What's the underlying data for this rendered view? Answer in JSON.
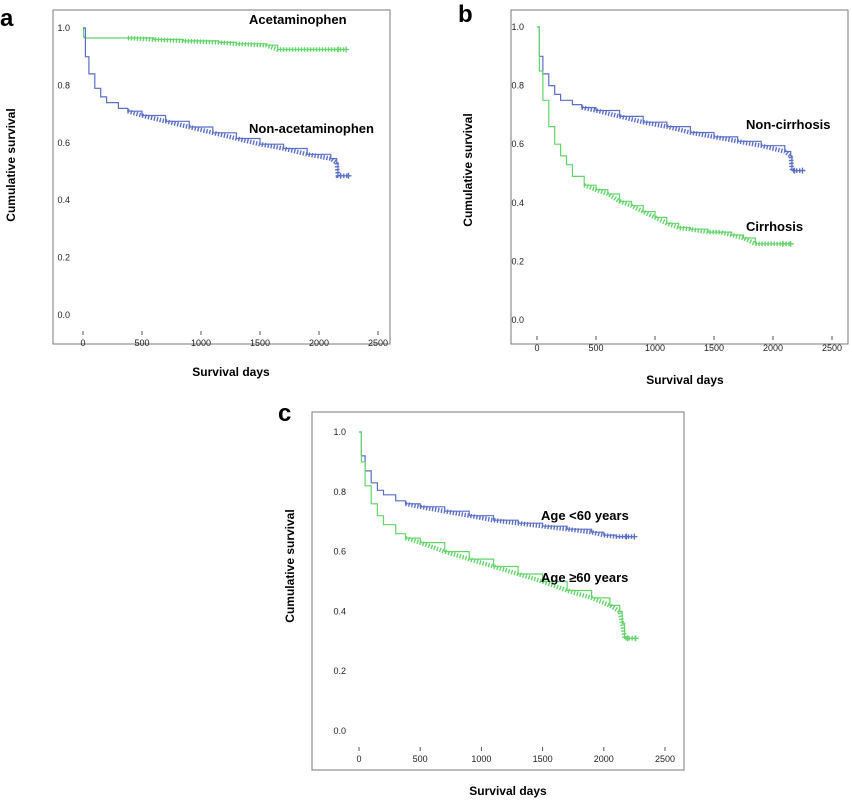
{
  "chart_data": [
    {
      "panel": "a",
      "type": "line",
      "xlabel": "Survival days",
      "ylabel": "Cumulative survival",
      "xlim": [
        0,
        2500
      ],
      "ylim": [
        0,
        1
      ],
      "xticks": [
        "0",
        "500",
        "1000",
        "1500",
        "2000",
        "2500"
      ],
      "yticks": [
        "0.0",
        "0.2",
        "0.4",
        "0.6",
        "0.8",
        "1.0"
      ],
      "series": [
        {
          "name": "Acetaminophen",
          "color": "#63d46b",
          "x": [
            0,
            5,
            10,
            380,
            600,
            850,
            1150,
            1300,
            1550,
            1650,
            1800,
            2000,
            2230
          ],
          "y": [
            1.0,
            0.97,
            0.965,
            0.965,
            0.96,
            0.955,
            0.95,
            0.945,
            0.94,
            0.925,
            0.925,
            0.925,
            0.925
          ]
        },
        {
          "name": "Non-acetaminophen",
          "color": "#5b6fc6",
          "x": [
            0,
            20,
            50,
            100,
            150,
            200,
            300,
            380,
            500,
            700,
            900,
            1100,
            1300,
            1500,
            1700,
            1900,
            2100,
            2150,
            2160,
            2250
          ],
          "y": [
            1.0,
            0.9,
            0.84,
            0.79,
            0.76,
            0.74,
            0.72,
            0.71,
            0.695,
            0.675,
            0.655,
            0.635,
            0.615,
            0.595,
            0.58,
            0.56,
            0.545,
            0.53,
            0.485,
            0.485
          ]
        }
      ]
    },
    {
      "panel": "b",
      "type": "line",
      "xlabel": "Survival days",
      "ylabel": "Cumulative survival",
      "xlim": [
        0,
        2500
      ],
      "ylim": [
        0,
        1
      ],
      "xticks": [
        "0",
        "500",
        "1000",
        "1500",
        "2000",
        "2500"
      ],
      "yticks": [
        "0.0",
        "0.2",
        "0.4",
        "0.6",
        "0.8",
        "1.0"
      ],
      "series": [
        {
          "name": "Non-cirrhosis",
          "color": "#5b6fc6",
          "x": [
            0,
            20,
            50,
            100,
            150,
            200,
            300,
            380,
            500,
            700,
            900,
            1100,
            1300,
            1500,
            1700,
            1900,
            2100,
            2150,
            2160,
            2250
          ],
          "y": [
            1.0,
            0.9,
            0.84,
            0.8,
            0.77,
            0.75,
            0.735,
            0.725,
            0.715,
            0.695,
            0.675,
            0.66,
            0.64,
            0.625,
            0.61,
            0.595,
            0.575,
            0.56,
            0.51,
            0.51
          ]
        },
        {
          "name": "Cirrhosis",
          "color": "#63d46b",
          "x": [
            0,
            20,
            50,
            100,
            150,
            200,
            250,
            300,
            400,
            500,
            600,
            700,
            800,
            900,
            1000,
            1100,
            1200,
            1300,
            1450,
            1550,
            1650,
            1750,
            1850,
            2000,
            2150
          ],
          "y": [
            1.0,
            0.85,
            0.75,
            0.66,
            0.6,
            0.56,
            0.53,
            0.49,
            0.46,
            0.445,
            0.43,
            0.405,
            0.39,
            0.37,
            0.35,
            0.33,
            0.315,
            0.31,
            0.3,
            0.3,
            0.29,
            0.28,
            0.26,
            0.26,
            0.26
          ]
        }
      ]
    },
    {
      "panel": "c",
      "type": "line",
      "xlabel": "Survival days",
      "ylabel": "Cumulative survival",
      "xlim": [
        0,
        2500
      ],
      "ylim": [
        0,
        1
      ],
      "xticks": [
        "0",
        "500",
        "1000",
        "1500",
        "2000",
        "2500"
      ],
      "yticks": [
        "0.0",
        "0.2",
        "0.4",
        "0.6",
        "0.8",
        "1.0"
      ],
      "series": [
        {
          "name": "Age <60 years",
          "color": "#5b6fc6",
          "x": [
            0,
            20,
            50,
            100,
            150,
            200,
            300,
            380,
            500,
            700,
            900,
            1100,
            1300,
            1500,
            1700,
            1900,
            2000,
            2100,
            2250
          ],
          "y": [
            1.0,
            0.92,
            0.87,
            0.83,
            0.805,
            0.79,
            0.77,
            0.76,
            0.75,
            0.735,
            0.72,
            0.705,
            0.695,
            0.685,
            0.675,
            0.665,
            0.655,
            0.65,
            0.65
          ]
        },
        {
          "name": "Age ≥60 years",
          "color": "#63d46b",
          "x": [
            0,
            20,
            50,
            100,
            150,
            200,
            300,
            380,
            500,
            700,
            900,
            1100,
            1300,
            1500,
            1700,
            1900,
            2050,
            2130,
            2150,
            2170,
            2260
          ],
          "y": [
            1.0,
            0.9,
            0.82,
            0.76,
            0.72,
            0.69,
            0.66,
            0.645,
            0.63,
            0.6,
            0.575,
            0.55,
            0.525,
            0.5,
            0.47,
            0.445,
            0.42,
            0.4,
            0.36,
            0.31,
            0.31
          ]
        }
      ]
    }
  ]
}
